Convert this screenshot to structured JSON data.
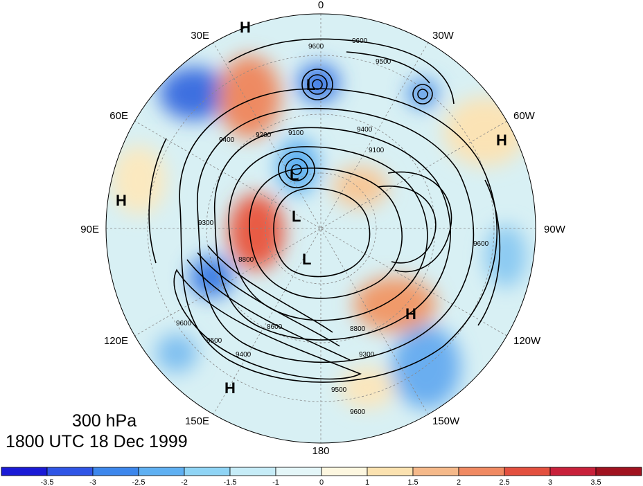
{
  "map": {
    "projection": "north-polar-stereographic",
    "longitude_labels": [
      "0",
      "30W",
      "60W",
      "90W",
      "120W",
      "150W",
      "180",
      "150E",
      "120E",
      "90E",
      "60E",
      "30E"
    ],
    "contour_labels": [
      "9600",
      "9600",
      "9500",
      "9400",
      "9100",
      "9100",
      "9200",
      "9300",
      "9400",
      "8800",
      "8600",
      "9500",
      "9600",
      "9400",
      "9300",
      "8800",
      "9600",
      "9500",
      "9600"
    ],
    "pressure_centers": [
      {
        "type": "H"
      },
      {
        "type": "L"
      },
      {
        "type": "L"
      },
      {
        "type": "L"
      },
      {
        "type": "L"
      },
      {
        "type": "H"
      },
      {
        "type": "H"
      },
      {
        "type": "H"
      },
      {
        "type": "H"
      }
    ],
    "contour_color": "#000000",
    "graticule_color": "#888888"
  },
  "caption": {
    "level": "300 hPa",
    "time": "1800 UTC 18 Dec 1999"
  },
  "colorbar": {
    "tick_labels": [
      "-3.5",
      "-3",
      "-2.5",
      "-2",
      "-1.5",
      "-1",
      "0",
      "1",
      "1.5",
      "2",
      "2.5",
      "3",
      "3.5"
    ],
    "colors": [
      "#1a1ad6",
      "#2f55e6",
      "#3d87ec",
      "#5fb0f2",
      "#8fd4f5",
      "#c6ecf7",
      "#e4f6f8",
      "#fdf7e0",
      "#fbe2b0",
      "#f5b98a",
      "#f08a62",
      "#e3503f",
      "#c8213a",
      "#a0121f"
    ]
  }
}
